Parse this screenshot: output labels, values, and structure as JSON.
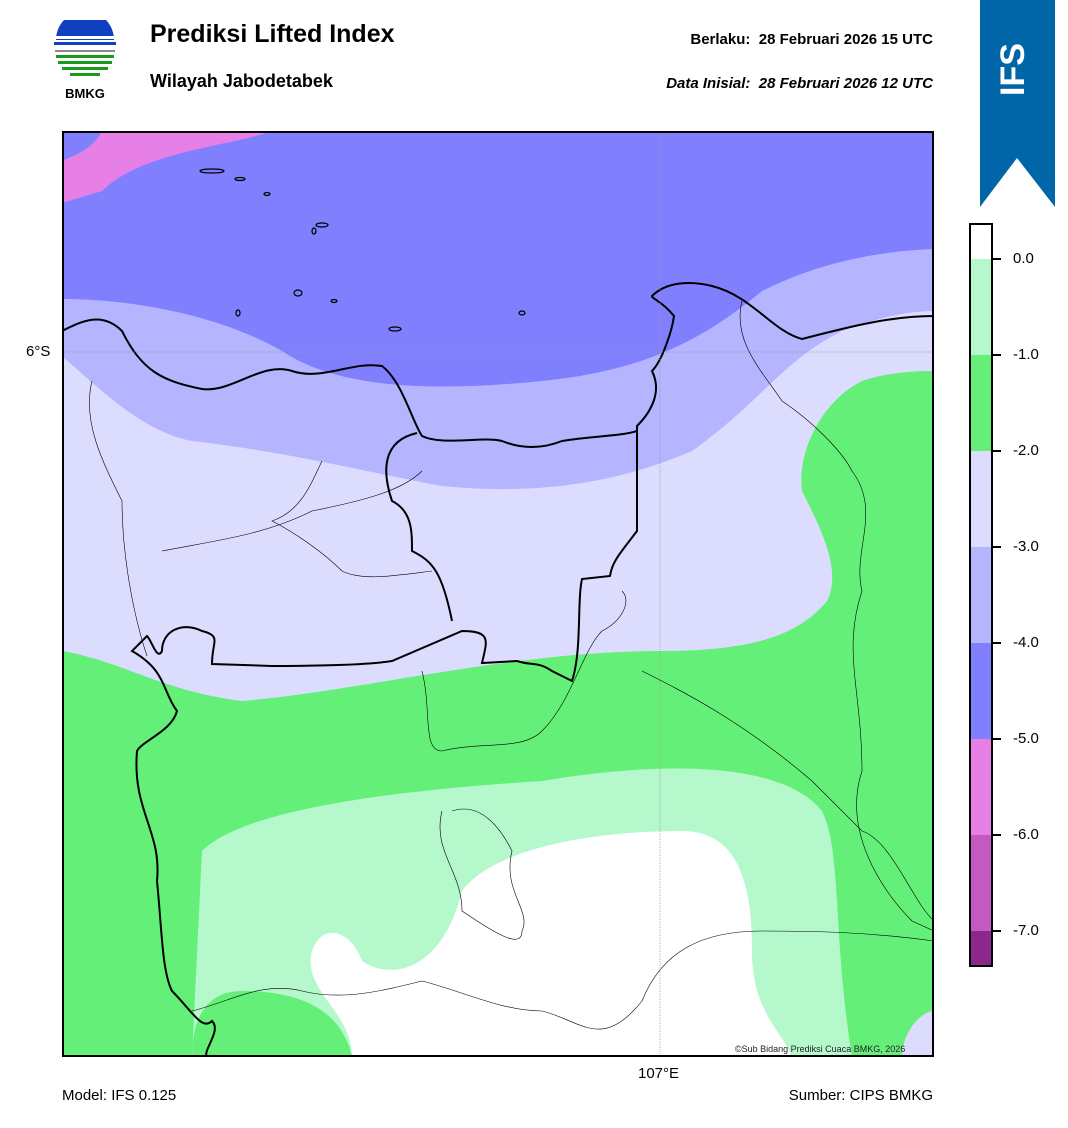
{
  "header": {
    "logo_text": "BMKG",
    "title": "Prediksi Lifted Index",
    "subtitle": "Wilayah Jabodetabek",
    "valid_label": "Berlaku:",
    "valid_value": "28 Februari 2026 15 UTC",
    "init_label": "Data Inisial:",
    "init_value": "28 Februari 2026 12 UTC",
    "ribbon": "IFS",
    "ribbon_color": "#0066a8"
  },
  "map": {
    "lat_label": "6°S",
    "lon_label": "107°E",
    "copyright": "©Sub Bidang Prediksi Cuaca BMKG, 2026"
  },
  "colorbar": {
    "ticks": [
      "0.0",
      "-1.0",
      "-2.0",
      "-3.0",
      "-4.0",
      "-5.0",
      "-6.0",
      "-7.0"
    ],
    "colors": [
      "#ffffff",
      "#b4f8cc",
      "#64f078",
      "#dcdcff",
      "#b4b4ff",
      "#8080ff",
      "#e680e6",
      "#c35ac3",
      "#8c288c"
    ]
  },
  "footer": {
    "model": "Model: IFS 0.125",
    "source": "Sumber: CIPS BMKG"
  }
}
